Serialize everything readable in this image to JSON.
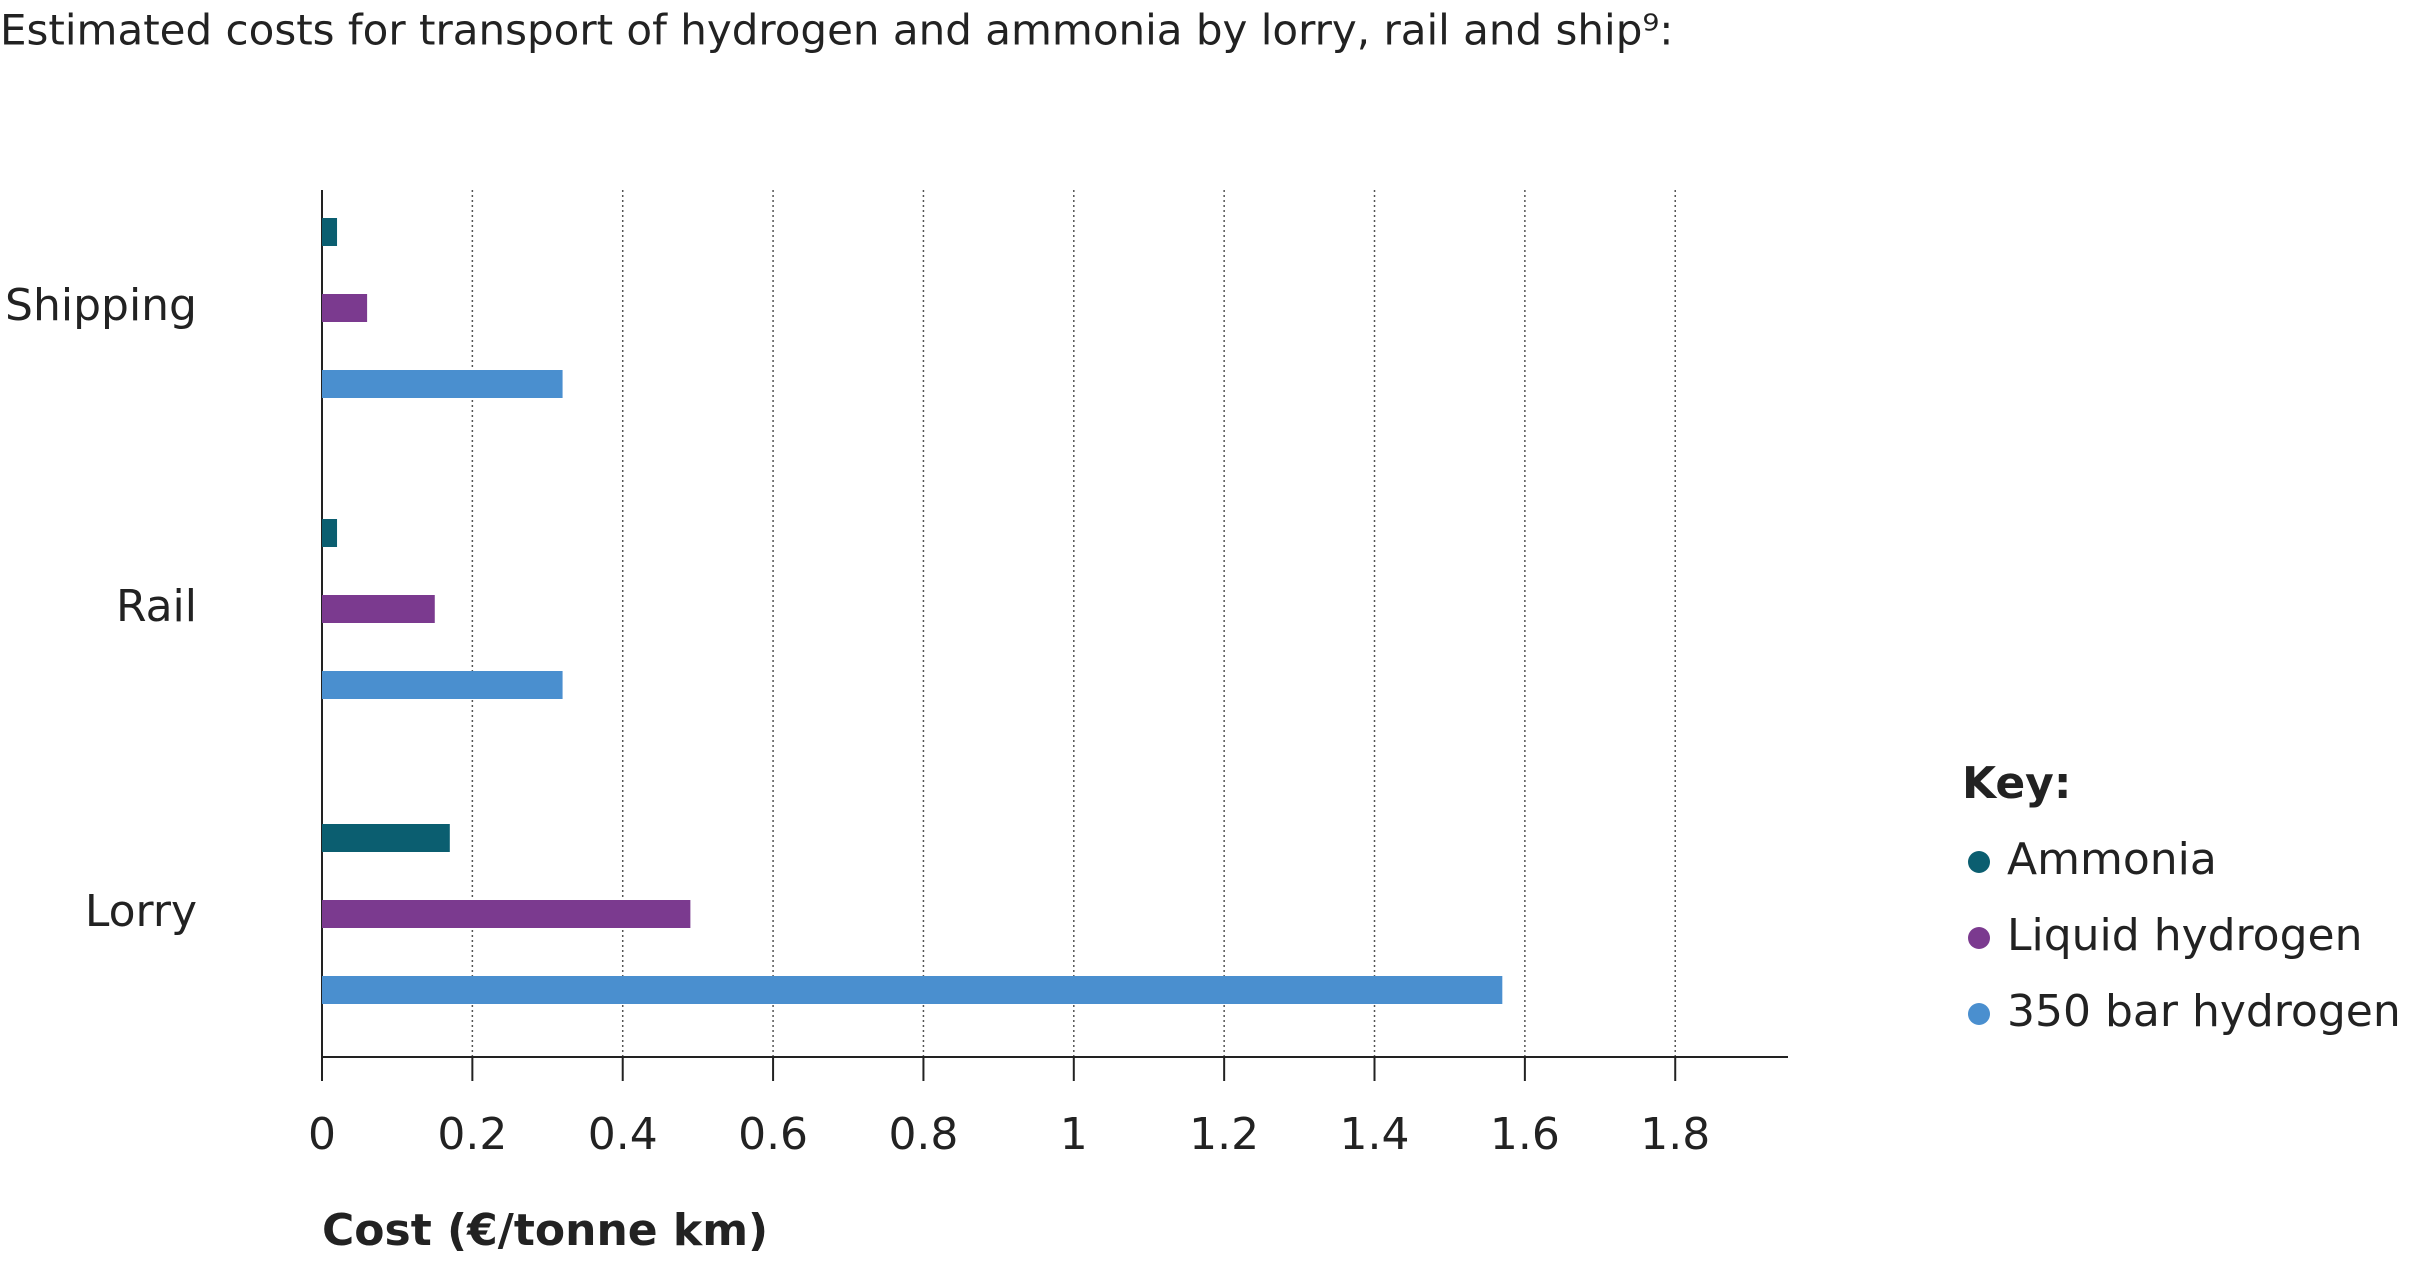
{
  "chart_data": {
    "type": "hbar",
    "title": "Estimated costs for transport of hydrogen and ammonia by lorry, rail and ship⁹:",
    "x_label": "Cost (€/tonne km)",
    "legend_title": "Key:",
    "categories": [
      "Shipping",
      "Rail",
      "Lorry"
    ],
    "series": [
      {
        "name": "Ammonia",
        "color": "#0b5e70",
        "values": [
          0.02,
          0.02,
          0.17
        ]
      },
      {
        "name": "Liquid hydrogen",
        "color": "#7b3a8f",
        "values": [
          0.06,
          0.15,
          0.49
        ]
      },
      {
        "name": "350 bar hydrogen",
        "color": "#4a8fcf",
        "values": [
          0.32,
          0.32,
          1.57
        ]
      }
    ],
    "xlim": [
      0,
      1.95
    ],
    "xticks": [
      0,
      0.2,
      0.4,
      0.6,
      0.8,
      1,
      1.2,
      1.4,
      1.6,
      1.8
    ],
    "grid": true
  }
}
